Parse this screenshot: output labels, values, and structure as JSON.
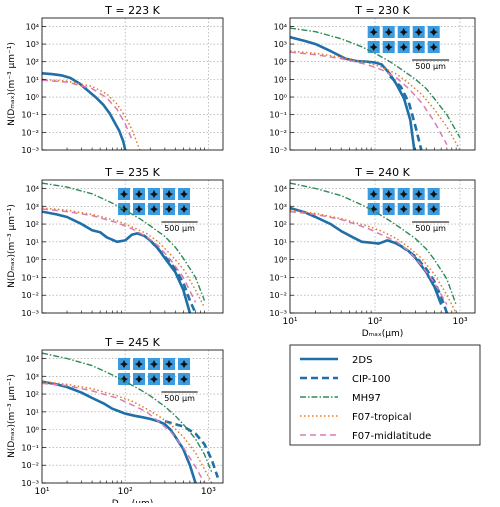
{
  "figure": {
    "ylabel": "N(Dₘₐₓ)(m⁻³ μm⁻¹)",
    "xlabel": "Dₘₐₓ(μm)",
    "scalebar_label": "500 μm",
    "x_ticks": [
      "10¹",
      "10²",
      "10³"
    ],
    "y_ticks": [
      "10⁴",
      "10³",
      "10²",
      "10¹",
      "10⁰",
      "10⁻¹",
      "10⁻²",
      "10⁻³"
    ],
    "colors": {
      "2DS": "#1f6fa8",
      "CIP-100": "#1f6fa8",
      "MH97": "#2e8b57",
      "F07-tropical": "#e07b2a",
      "F07-midlatitude": "#d97bb4",
      "crystal_bg": "#3a9be0"
    }
  },
  "legend": {
    "placement": "bottom-right",
    "entries": [
      {
        "name": "2DS",
        "style": "solid"
      },
      {
        "name": "CIP-100",
        "style": "dashed"
      },
      {
        "name": "MH97",
        "style": "dashdot"
      },
      {
        "name": "F07-tropical",
        "style": "dotted"
      },
      {
        "name": "F07-midlatitude",
        "style": "dashed-pink"
      }
    ]
  },
  "chart_data": [
    {
      "type": "line",
      "title": "T = 223 K",
      "xscale": "log",
      "yscale": "log",
      "xlim": [
        10,
        1500
      ],
      "ylim": [
        0.001,
        30000
      ],
      "grid": true,
      "crystal_images": false,
      "series": [
        {
          "name": "2DS",
          "x": [
            10,
            13,
            17,
            22,
            28,
            36,
            45,
            55,
            65,
            75,
            85,
            95,
            100
          ],
          "y": [
            22,
            20,
            17,
            12,
            6,
            2.2,
            0.9,
            0.35,
            0.12,
            0.035,
            0.012,
            0.003,
            0.001
          ]
        },
        {
          "name": "F07-tropical",
          "x": [
            10,
            20,
            40,
            60,
            80,
            100,
            120,
            150
          ],
          "y": [
            10,
            8,
            4,
            1.5,
            0.4,
            0.08,
            0.015,
            0.001
          ]
        },
        {
          "name": "F07-midlatitude",
          "x": [
            10,
            20,
            40,
            60,
            80,
            100,
            120
          ],
          "y": [
            9,
            7,
            3,
            0.9,
            0.2,
            0.03,
            0.004
          ]
        }
      ]
    },
    {
      "type": "line",
      "title": "T = 230 K",
      "xscale": "log",
      "yscale": "log",
      "xlim": [
        10,
        1500
      ],
      "ylim": [
        0.001,
        30000
      ],
      "grid": true,
      "crystal_images": true,
      "series": [
        {
          "name": "2DS",
          "x": [
            10,
            15,
            20,
            30,
            45,
            60,
            80,
            100,
            120,
            150,
            180,
            220,
            260,
            290
          ],
          "y": [
            2500,
            1500,
            1000,
            400,
            150,
            110,
            100,
            90,
            70,
            20,
            5,
            0.8,
            0.05,
            0.001
          ]
        },
        {
          "name": "CIP-100",
          "x": [
            150,
            200,
            250,
            300,
            350
          ],
          "y": [
            15,
            4,
            0.5,
            0.02,
            0.001
          ]
        },
        {
          "name": "MH97",
          "x": [
            10,
            20,
            40,
            70,
            100,
            150,
            200,
            300,
            400,
            500,
            700,
            1000
          ],
          "y": [
            8000,
            5000,
            2000,
            700,
            300,
            100,
            40,
            10,
            3,
            0.8,
            0.1,
            0.005
          ]
        },
        {
          "name": "F07-tropical",
          "x": [
            10,
            20,
            40,
            80,
            120,
            180,
            250,
            350,
            500,
            700,
            1000
          ],
          "y": [
            400,
            300,
            180,
            90,
            50,
            20,
            6,
            1.5,
            0.2,
            0.02,
            0.001
          ]
        },
        {
          "name": "F07-midlatitude",
          "x": [
            10,
            20,
            40,
            80,
            120,
            180,
            250,
            350,
            500,
            700
          ],
          "y": [
            350,
            250,
            150,
            70,
            35,
            12,
            3,
            0.5,
            0.04,
            0.002
          ]
        }
      ]
    },
    {
      "type": "line",
      "title": "T = 235 K",
      "xscale": "log",
      "yscale": "log",
      "xlim": [
        10,
        1500
      ],
      "ylim": [
        0.001,
        30000
      ],
      "grid": true,
      "crystal_images": true,
      "series": [
        {
          "name": "2DS",
          "x": [
            10,
            15,
            20,
            30,
            40,
            50,
            60,
            80,
            100,
            120,
            140,
            170,
            200,
            250,
            300,
            400,
            500,
            600
          ],
          "y": [
            500,
            350,
            250,
            100,
            45,
            35,
            18,
            10,
            12,
            25,
            30,
            22,
            12,
            4,
            1.2,
            0.2,
            0.02,
            0.001
          ]
        },
        {
          "name": "CIP-100",
          "x": [
            200,
            300,
            400,
            500,
            600,
            700
          ],
          "y": [
            12,
            1.5,
            0.3,
            0.05,
            0.005,
            0.001
          ]
        },
        {
          "name": "MH97",
          "x": [
            10,
            20,
            40,
            70,
            100,
            150,
            200,
            300,
            400,
            500,
            700,
            900
          ],
          "y": [
            20000,
            12000,
            5000,
            1500,
            600,
            200,
            80,
            20,
            5,
            1.2,
            0.1,
            0.005
          ]
        },
        {
          "name": "F07-tropical",
          "x": [
            10,
            20,
            40,
            80,
            120,
            180,
            250,
            350,
            500,
            700,
            900
          ],
          "y": [
            800,
            600,
            350,
            150,
            70,
            30,
            10,
            2,
            0.3,
            0.02,
            0.002
          ]
        },
        {
          "name": "F07-midlatitude",
          "x": [
            10,
            20,
            40,
            80,
            120,
            180,
            250,
            350,
            500,
            700
          ],
          "y": [
            700,
            500,
            300,
            120,
            55,
            20,
            6,
            1,
            0.1,
            0.004
          ]
        }
      ]
    },
    {
      "type": "line",
      "title": "T = 240 K",
      "xscale": "log",
      "yscale": "log",
      "xlim": [
        10,
        1500
      ],
      "ylim": [
        0.001,
        30000
      ],
      "grid": true,
      "crystal_images": true,
      "xlabel": "Dₘₐₓ(μm)",
      "series": [
        {
          "name": "2DS",
          "x": [
            10,
            15,
            20,
            30,
            40,
            55,
            70,
            90,
            110,
            140,
            170,
            200,
            250,
            300,
            400,
            500,
            600
          ],
          "y": [
            800,
            450,
            250,
            100,
            40,
            18,
            10,
            9,
            8,
            12,
            9,
            6,
            3,
            1.2,
            0.2,
            0.03,
            0.003
          ]
        },
        {
          "name": "CIP-100",
          "x": [
            200,
            300,
            400,
            500,
            600,
            700
          ],
          "y": [
            6,
            1.5,
            0.3,
            0.06,
            0.008,
            0.001
          ]
        },
        {
          "name": "MH97",
          "x": [
            10,
            20,
            40,
            70,
            100,
            150,
            200,
            300,
            400,
            500,
            700,
            900
          ],
          "y": [
            20000,
            10000,
            4000,
            1200,
            500,
            150,
            60,
            15,
            4,
            1,
            0.08,
            0.003
          ]
        },
        {
          "name": "F07-tropical",
          "x": [
            10,
            20,
            40,
            80,
            120,
            180,
            250,
            350,
            500,
            700,
            900
          ],
          "y": [
            600,
            400,
            200,
            80,
            40,
            15,
            5,
            1.2,
            0.15,
            0.01,
            0.001
          ]
        },
        {
          "name": "F07-midlatitude",
          "x": [
            10,
            20,
            40,
            80,
            120,
            180,
            250,
            350,
            500,
            700
          ],
          "y": [
            500,
            350,
            180,
            60,
            25,
            10,
            3,
            0.5,
            0.05,
            0.003
          ]
        }
      ]
    },
    {
      "type": "line",
      "title": "T = 245 K",
      "xscale": "log",
      "yscale": "log",
      "xlim": [
        10,
        1500
      ],
      "ylim": [
        0.001,
        30000
      ],
      "grid": true,
      "crystal_images": true,
      "xlabel": "Dₘₐₓ(μm)",
      "series": [
        {
          "name": "2DS",
          "x": [
            10,
            15,
            20,
            30,
            40,
            55,
            70,
            100,
            130,
            160,
            200,
            250,
            300,
            350,
            400,
            500,
            600,
            700
          ],
          "y": [
            500,
            350,
            250,
            120,
            60,
            30,
            15,
            8,
            6,
            5,
            4,
            3,
            2,
            1,
            0.4,
            0.08,
            0.01,
            0.001
          ]
        },
        {
          "name": "CIP-100",
          "x": [
            300,
            500,
            700,
            900,
            1100,
            1300
          ],
          "y": [
            3,
            1.5,
            0.6,
            0.15,
            0.02,
            0.002
          ]
        },
        {
          "name": "MH97",
          "x": [
            10,
            20,
            40,
            70,
            100,
            150,
            200,
            300,
            400,
            500,
            700,
            900,
            1100
          ],
          "y": [
            20000,
            10000,
            4000,
            1200,
            500,
            180,
            80,
            20,
            6,
            2,
            0.3,
            0.04,
            0.004
          ]
        },
        {
          "name": "F07-tropical",
          "x": [
            10,
            20,
            40,
            80,
            120,
            180,
            250,
            350,
            500,
            700,
            900,
            1100
          ],
          "y": [
            500,
            350,
            200,
            80,
            40,
            15,
            6,
            2,
            0.4,
            0.05,
            0.006,
            0.001
          ]
        },
        {
          "name": "F07-midlatitude",
          "x": [
            10,
            20,
            40,
            80,
            120,
            180,
            250,
            350,
            500,
            700,
            900
          ],
          "y": [
            400,
            300,
            150,
            60,
            25,
            10,
            3,
            0.8,
            0.1,
            0.008,
            0.001
          ]
        }
      ]
    }
  ]
}
